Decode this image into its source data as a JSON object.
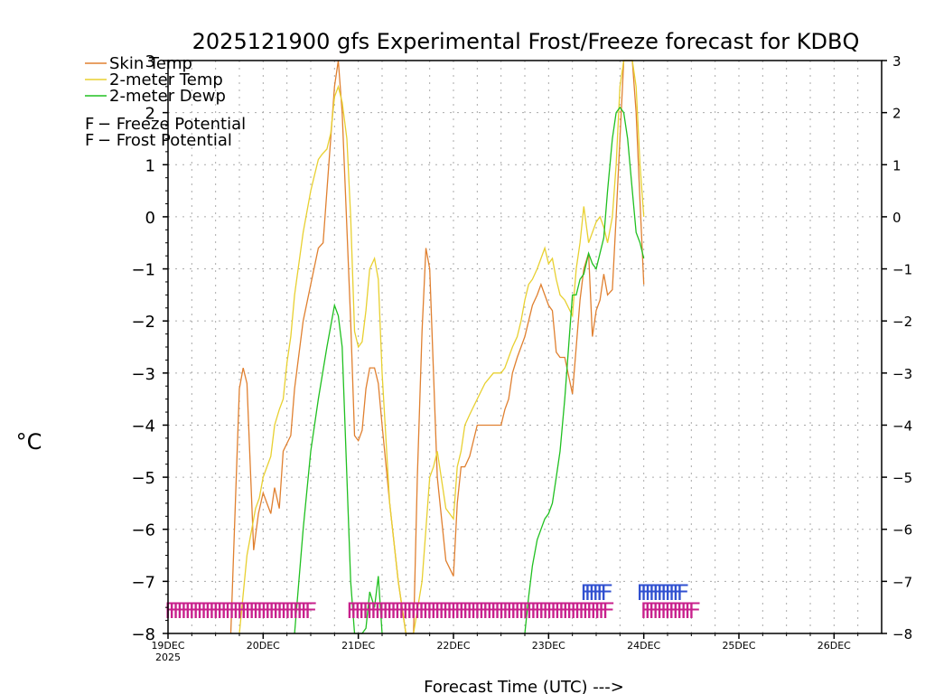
{
  "chart_data": {
    "type": "line",
    "title": "2025121900 gfs Experimental Frost/Freeze forecast for KDBQ",
    "ylabel": "°C",
    "xlabel": "Forecast Time (UTC) --->",
    "ylim": [
      -8,
      3
    ],
    "yticks": [
      "3",
      "2",
      "1",
      "0",
      "−1",
      "−2",
      "−3",
      "−4",
      "−5",
      "−6",
      "−7",
      "−8"
    ],
    "ytick_values": [
      3,
      2,
      1,
      0,
      -1,
      -2,
      -3,
      -4,
      -5,
      -6,
      -7,
      -8
    ],
    "xlim": [
      0,
      7.5
    ],
    "xticks": [
      "19DEC",
      "20DEC",
      "21DEC",
      "22DEC",
      "23DEC",
      "24DEC",
      "25DEC",
      "26DEC"
    ],
    "xtick_values": [
      0,
      1,
      2,
      3,
      4,
      5,
      6,
      7
    ],
    "xtick_year": "2025",
    "grid": true,
    "legend": [
      {
        "label": "Skin Temp",
        "color": "#e08030"
      },
      {
        "label": "2-meter Temp",
        "color": "#e8d030"
      },
      {
        "label": "2-meter Dewp",
        "color": "#20c020"
      }
    ],
    "markers_legend": [
      {
        "symbol": "F",
        "label": " − Freeze Potential",
        "color": "#c8208c"
      },
      {
        "symbol": "F",
        "label": " − Frost Potential",
        "color": "#3050d0"
      }
    ],
    "series": [
      {
        "name": "Skin Temp",
        "color": "#e08030",
        "x": [
          0.66,
          0.75,
          0.79,
          0.83,
          0.9,
          0.95,
          1.0,
          1.04,
          1.08,
          1.12,
          1.17,
          1.21,
          1.29,
          1.33,
          1.42,
          1.5,
          1.58,
          1.63,
          1.67,
          1.71,
          1.75,
          1.79,
          1.83,
          1.92,
          1.96,
          2.0,
          2.04,
          2.08,
          2.12,
          2.17,
          2.21,
          2.25,
          2.33,
          2.42,
          2.5,
          2.58,
          2.62,
          2.67,
          2.71,
          2.75,
          2.83,
          2.92,
          3.0,
          3.04,
          3.08,
          3.12,
          3.17,
          3.25,
          3.29,
          3.33,
          3.42,
          3.5,
          3.54,
          3.58,
          3.62,
          3.67,
          3.71,
          3.75,
          3.79,
          3.83,
          3.88,
          3.92,
          3.96,
          4.0,
          4.04,
          4.08,
          4.12,
          4.17,
          4.25,
          4.33,
          4.37,
          4.42,
          4.46,
          4.5,
          4.54,
          4.58,
          4.62,
          4.67,
          4.71,
          4.75,
          4.79,
          4.83,
          4.88,
          4.92,
          4.96,
          5.0
        ],
        "values": [
          -8.0,
          -3.3,
          -2.9,
          -3.2,
          -6.4,
          -5.7,
          -5.3,
          -5.5,
          -5.7,
          -5.2,
          -5.6,
          -4.5,
          -4.2,
          -3.3,
          -2.0,
          -1.3,
          -0.6,
          -0.5,
          0.5,
          1.5,
          2.5,
          3.0,
          2.0,
          -2.0,
          -4.2,
          -4.3,
          -4.1,
          -3.3,
          -2.9,
          -2.9,
          -3.2,
          -4.0,
          -5.5,
          -7.0,
          -8.0,
          -8.0,
          -5.0,
          -2.2,
          -0.6,
          -1.0,
          -5.0,
          -6.6,
          -6.9,
          -5.5,
          -4.8,
          -4.8,
          -4.6,
          -4.0,
          -4.0,
          -4.0,
          -4.0,
          -4.0,
          -3.7,
          -3.5,
          -3.0,
          -2.7,
          -2.5,
          -2.3,
          -2.0,
          -1.7,
          -1.5,
          -1.3,
          -1.5,
          -1.7,
          -1.8,
          -2.6,
          -2.7,
          -2.7,
          -3.4,
          -1.6,
          -1.0,
          -0.7,
          -2.3,
          -1.8,
          -1.6,
          -1.1,
          -1.5,
          -1.4,
          0.0,
          1.5,
          3.0,
          3.0,
          3.0,
          2.0,
          0.3,
          -1.3
        ],
        "tail": [
          [
            5.0,
            -1.3
          ]
        ]
      },
      {
        "name": "2-meter Temp",
        "color": "#e8d030",
        "x": [
          0.75,
          0.83,
          0.92,
          0.96,
          1.0,
          1.08,
          1.12,
          1.17,
          1.21,
          1.25,
          1.29,
          1.33,
          1.42,
          1.5,
          1.58,
          1.62,
          1.67,
          1.71,
          1.75,
          1.79,
          1.83,
          1.88,
          1.92,
          1.96,
          2.0,
          2.04,
          2.08,
          2.12,
          2.17,
          2.21,
          2.25,
          2.33,
          2.42,
          2.5,
          2.58,
          2.67,
          2.71,
          2.75,
          2.79,
          2.83,
          2.92,
          3.0,
          3.04,
          3.08,
          3.12,
          3.17,
          3.25,
          3.33,
          3.42,
          3.5,
          3.54,
          3.58,
          3.62,
          3.67,
          3.71,
          3.75,
          3.79,
          3.83,
          3.88,
          3.92,
          3.96,
          4.0,
          4.04,
          4.08,
          4.12,
          4.17,
          4.25,
          4.29,
          4.33,
          4.37,
          4.42,
          4.46,
          4.5,
          4.54,
          4.58,
          4.62,
          4.67,
          4.71,
          4.75,
          4.79,
          4.83,
          4.88,
          4.92,
          4.96,
          5.0
        ],
        "values": [
          -8.0,
          -6.5,
          -5.6,
          -5.4,
          -5.0,
          -4.6,
          -4.0,
          -3.7,
          -3.5,
          -2.8,
          -2.3,
          -1.5,
          -0.3,
          0.5,
          1.1,
          1.2,
          1.3,
          1.6,
          2.3,
          2.5,
          2.2,
          1.5,
          0.0,
          -2.2,
          -2.5,
          -2.4,
          -1.8,
          -1.0,
          -0.8,
          -1.2,
          -3.0,
          -5.5,
          -7.0,
          -8.0,
          -8.0,
          -7.0,
          -6.0,
          -5.0,
          -4.8,
          -4.5,
          -5.6,
          -5.8,
          -4.8,
          -4.5,
          -4.0,
          -3.8,
          -3.5,
          -3.2,
          -3.0,
          -3.0,
          -2.9,
          -2.7,
          -2.5,
          -2.3,
          -2.0,
          -1.6,
          -1.3,
          -1.2,
          -1.0,
          -0.8,
          -0.6,
          -0.9,
          -0.8,
          -1.2,
          -1.5,
          -1.6,
          -1.9,
          -1.0,
          -0.5,
          0.2,
          -0.5,
          -0.3,
          -0.1,
          0.0,
          -0.2,
          -0.5,
          0.0,
          1.0,
          2.5,
          3.0,
          3.0,
          3.0,
          2.5,
          1.0,
          0.0
        ]
      },
      {
        "name": "2-meter Dewp",
        "color": "#20c020",
        "segments": [
          {
            "x": [
              1.33,
              1.42,
              1.5,
              1.58,
              1.67,
              1.75,
              1.79,
              1.83,
              1.92,
              1.96,
              2.0,
              2.04,
              2.08,
              2.12,
              2.17,
              2.21,
              2.25
            ],
            "values": [
              -8.0,
              -6.0,
              -4.5,
              -3.5,
              -2.5,
              -1.7,
              -1.9,
              -2.5,
              -7.0,
              -8.0,
              -8.0,
              -8.0,
              -7.9,
              -7.2,
              -7.5,
              -6.9,
              -8.0
            ]
          },
          {
            "x": [
              3.75,
              3.79,
              3.83,
              3.88,
              3.92,
              3.96,
              4.0,
              4.04,
              4.08,
              4.12,
              4.17,
              4.25,
              4.29,
              4.33,
              4.37,
              4.42,
              4.46,
              4.5,
              4.54,
              4.58,
              4.62,
              4.67,
              4.71,
              4.75,
              4.79,
              4.83,
              4.88,
              4.92,
              4.96,
              5.0
            ],
            "values": [
              -8.0,
              -7.3,
              -6.7,
              -6.2,
              -6.0,
              -5.8,
              -5.7,
              -5.5,
              -5.0,
              -4.5,
              -3.5,
              -1.5,
              -1.5,
              -1.2,
              -1.1,
              -0.7,
              -0.9,
              -1.0,
              -0.7,
              -0.4,
              0.5,
              1.5,
              2.0,
              2.1,
              2.0,
              1.5,
              0.5,
              -0.3,
              -0.5,
              -0.8
            ]
          }
        ]
      }
    ],
    "potential_markers": {
      "freeze": {
        "label_char": "F",
        "color": "#c8208c",
        "level": -7.55,
        "ranges": [
          [
            -0.04,
            1.43
          ],
          [
            1.87,
            4.58
          ],
          [
            4.96,
            5.5
          ]
        ],
        "step": 0.042
      },
      "frost": {
        "label_char": "F",
        "color": "#3050d0",
        "level": -7.2,
        "ranges": [
          [
            4.33,
            4.58
          ],
          [
            4.92,
            5.38
          ]
        ],
        "step": 0.042
      }
    }
  }
}
